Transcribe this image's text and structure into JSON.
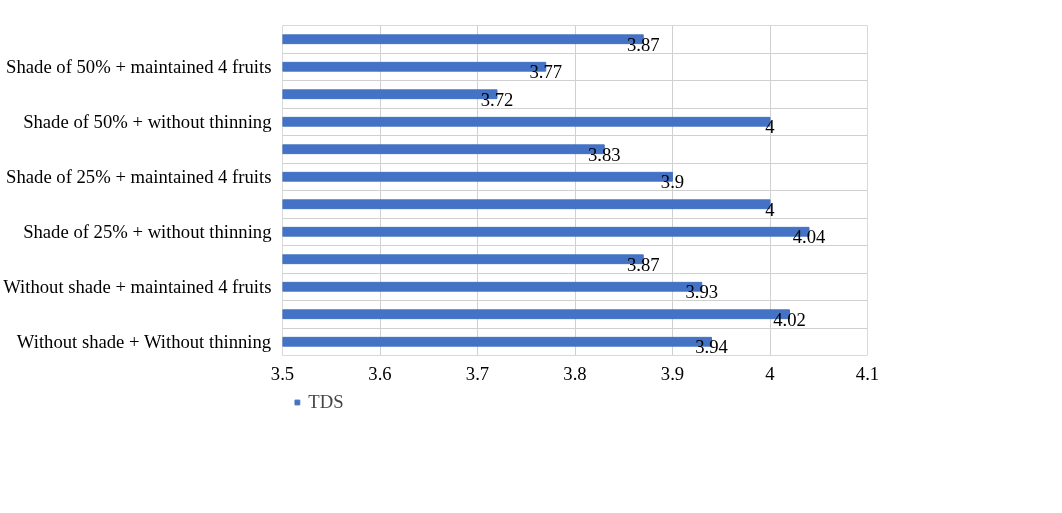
{
  "chart_data": {
    "type": "bar",
    "orientation": "horizontal",
    "categories": [
      null,
      "Shade of 50% + maintained 4 fruits",
      null,
      "Shade of 50% + without thinning",
      null,
      "Shade of 25% + maintained 4 fruits",
      null,
      "Shade of 25% + without thinning",
      null,
      "Without shade + maintained 4 fruits",
      null,
      "Without shade + Without thinning"
    ],
    "series": [
      {
        "name": "TDS",
        "color": "#4472c4",
        "values": [
          3.87,
          3.77,
          3.72,
          4,
          3.83,
          3.9,
          4,
          4.04,
          3.87,
          3.93,
          4.02,
          3.94
        ]
      }
    ],
    "xlim": [
      3.5,
      4.1
    ],
    "xticks": [
      3.5,
      3.6,
      3.7,
      3.8,
      3.9,
      4,
      4.1
    ],
    "data_labels": true,
    "grid": true,
    "legend": "bottom"
  }
}
